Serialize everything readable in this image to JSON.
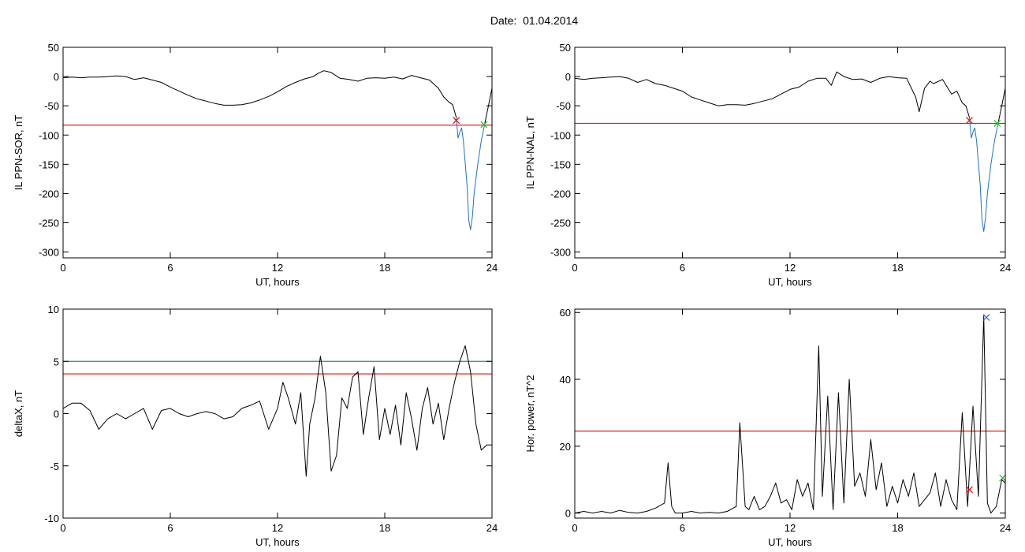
{
  "figure_title": "Date:  01.04.2014",
  "colors": {
    "axis": "#000000",
    "threshold_red": "#e0201a",
    "threshold_teal": "#1f8f8f",
    "event": "#1f6fd0",
    "marker_red": "#d01010",
    "marker_green": "#20c020",
    "marker_blue": "#3070d0"
  },
  "chart_data": [
    {
      "type": "line",
      "xlabel": "UT, hours",
      "ylabel": "IL PPN-SOR, nT",
      "xlim": [
        0,
        24
      ],
      "ylim": [
        -310,
        50
      ],
      "xticks": [
        "0",
        "6",
        "12",
        "18",
        "24"
      ],
      "yticks": [
        "50",
        "0",
        "-50",
        "-100",
        "-150",
        "-200",
        "-250",
        "-300"
      ],
      "xtick_values": [
        0,
        6,
        12,
        18,
        24
      ],
      "ytick_values": [
        50,
        0,
        -50,
        -100,
        -150,
        -200,
        -250,
        -300
      ],
      "series": [
        {
          "color": "#000000",
          "x": [
            0,
            0.5,
            1,
            1.5,
            2,
            2.5,
            3,
            3.5,
            4,
            4.5,
            5,
            5.5,
            6,
            6.5,
            7,
            7.5,
            8,
            8.5,
            9,
            9.5,
            10,
            10.5,
            11,
            11.5,
            12,
            12.5,
            13,
            13.5,
            14,
            14.3,
            14.6,
            15,
            15.5,
            16,
            16.5,
            17,
            17.5,
            18,
            18.5,
            19,
            19.5,
            20,
            20.5,
            21,
            21.3,
            21.6,
            21.8,
            22.0
          ],
          "y": [
            -2,
            -1,
            -2,
            -1,
            -1,
            0,
            1,
            0,
            -5,
            -2,
            -6,
            -10,
            -18,
            -25,
            -32,
            -38,
            -42,
            -46,
            -49,
            -49,
            -48,
            -45,
            -40,
            -34,
            -26,
            -17,
            -10,
            -4,
            0,
            6,
            10,
            7,
            -3,
            -5,
            -8,
            -3,
            -2,
            -3,
            -1,
            -4,
            2,
            -2,
            -6,
            -20,
            -35,
            -44,
            -48,
            -70
          ]
        },
        {
          "color": "#1f6fd0",
          "x": [
            22.0,
            22.1,
            22.2,
            22.3,
            22.4,
            22.6,
            22.7,
            22.8,
            22.9,
            23.0,
            23.2,
            23.4,
            23.6
          ],
          "y": [
            -70,
            -105,
            -95,
            -88,
            -110,
            -185,
            -245,
            -262,
            -240,
            -200,
            -150,
            -110,
            -80
          ]
        },
        {
          "color": "#000000",
          "x": [
            23.6,
            23.8,
            24.0
          ],
          "y": [
            -80,
            -50,
            -20
          ]
        }
      ],
      "thresholds": [
        {
          "y": -83,
          "color": "#e0201a"
        }
      ],
      "markers": [
        {
          "x": 22.0,
          "y": -75,
          "color": "#d01010"
        },
        {
          "x": 23.55,
          "y": -82,
          "color": "#20c020"
        }
      ]
    },
    {
      "type": "line",
      "xlabel": "UT, hours",
      "ylabel": "IL PPN-NAL, nT",
      "xlim": [
        0,
        24
      ],
      "ylim": [
        -310,
        50
      ],
      "xticks": [
        "0",
        "6",
        "12",
        "18",
        "24"
      ],
      "yticks": [
        "50",
        "0",
        "-50",
        "-100",
        "-150",
        "-200",
        "-250",
        "-300"
      ],
      "xtick_values": [
        0,
        6,
        12,
        18,
        24
      ],
      "ytick_values": [
        50,
        0,
        -50,
        -100,
        -150,
        -200,
        -250,
        -300
      ],
      "series": [
        {
          "color": "#000000",
          "x": [
            0,
            0.5,
            1,
            1.5,
            2,
            2.5,
            3,
            3.5,
            4,
            4.5,
            5,
            5.5,
            6,
            6.5,
            7,
            7.5,
            8,
            8.5,
            9,
            9.5,
            10,
            10.5,
            11,
            11.5,
            12,
            12.5,
            13,
            13.5,
            14,
            14.3,
            14.6,
            15,
            15.5,
            16,
            16.5,
            17,
            17.5,
            18,
            18.5,
            19,
            19.2,
            19.5,
            19.8,
            20,
            20.5,
            21,
            21.3,
            21.6,
            21.8,
            22.0
          ],
          "y": [
            -3,
            -5,
            -3,
            -2,
            -1,
            0,
            -3,
            -10,
            -5,
            -12,
            -15,
            -20,
            -25,
            -35,
            -40,
            -45,
            -50,
            -48,
            -48,
            -49,
            -46,
            -42,
            -38,
            -30,
            -22,
            -18,
            -8,
            -3,
            -3,
            -15,
            8,
            0,
            -5,
            -4,
            -10,
            -3,
            0,
            -2,
            -3,
            -35,
            -60,
            -20,
            -8,
            -12,
            -5,
            -30,
            -25,
            -45,
            -50,
            -70
          ]
        },
        {
          "color": "#1f6fd0",
          "x": [
            22.0,
            22.1,
            22.2,
            22.3,
            22.4,
            22.6,
            22.7,
            22.8,
            22.9,
            23.0,
            23.2,
            23.4,
            23.6
          ],
          "y": [
            -70,
            -105,
            -95,
            -88,
            -110,
            -185,
            -245,
            -265,
            -240,
            -200,
            -150,
            -110,
            -80
          ]
        },
        {
          "color": "#000000",
          "x": [
            23.6,
            23.8,
            24.0
          ],
          "y": [
            -80,
            -50,
            -20
          ]
        }
      ],
      "thresholds": [
        {
          "y": -80,
          "color": "#e0201a"
        }
      ],
      "markers": [
        {
          "x": 22.0,
          "y": -75,
          "color": "#d01010"
        },
        {
          "x": 23.55,
          "y": -80,
          "color": "#20c020"
        }
      ]
    },
    {
      "type": "line",
      "xlabel": "UT, hours",
      "ylabel": "deltaX, nT",
      "xlim": [
        0,
        24
      ],
      "ylim": [
        -10,
        10
      ],
      "xticks": [
        "0",
        "6",
        "12",
        "18",
        "24"
      ],
      "yticks": [
        "10",
        "5",
        "0",
        "-5",
        "-10"
      ],
      "xtick_values": [
        0,
        6,
        12,
        18,
        24
      ],
      "ytick_values": [
        10,
        5,
        0,
        -5,
        -10
      ],
      "series": [
        {
          "color": "#000000",
          "x": [
            0,
            0.5,
            1,
            1.5,
            2,
            2.5,
            3,
            3.5,
            4,
            4.5,
            5,
            5.5,
            6,
            6.5,
            7,
            7.5,
            8,
            8.5,
            9,
            9.5,
            10,
            10.5,
            11,
            11.5,
            12,
            12.3,
            12.6,
            13,
            13.3,
            13.6,
            13.8,
            14.1,
            14.4,
            14.7,
            15.0,
            15.3,
            15.6,
            15.9,
            16.2,
            16.5,
            16.8,
            17.1,
            17.4,
            17.7,
            18.0,
            18.3,
            18.6,
            18.9,
            19.2,
            19.5,
            19.8,
            20.1,
            20.4,
            20.7,
            21.0,
            21.3,
            21.6,
            21.9,
            22.2,
            22.5,
            22.8,
            23.1,
            23.4,
            23.7,
            24.0
          ],
          "y": [
            0.5,
            1.0,
            1.0,
            0.3,
            -1.5,
            -0.5,
            0.0,
            -0.5,
            0.0,
            0.5,
            -1.5,
            0.3,
            0.5,
            0.0,
            -0.3,
            0.0,
            0.2,
            0.0,
            -0.5,
            -0.3,
            0.5,
            0.8,
            1.2,
            -1.5,
            0.5,
            3.0,
            1.5,
            -1.0,
            2.0,
            -6.0,
            -1.0,
            1.5,
            5.5,
            2.0,
            -5.5,
            -4.0,
            1.5,
            0.5,
            3.5,
            4.0,
            -2.0,
            1.5,
            4.5,
            -2.5,
            0.5,
            -2.0,
            0.8,
            -3.0,
            2.0,
            -0.5,
            -3.5,
            0.5,
            2.5,
            -1.0,
            1.0,
            -2.5,
            0.5,
            3.0,
            5.0,
            6.5,
            4.0,
            -1.0,
            -3.5,
            -3.0,
            -3.0
          ]
        }
      ],
      "thresholds": [
        {
          "y": 5.0,
          "color": "#1f8f8f"
        },
        {
          "y": 3.8,
          "color": "#e0201a"
        }
      ],
      "markers": []
    },
    {
      "type": "line",
      "xlabel": "UT, hours",
      "ylabel": "Hor. power, nT^2",
      "xlim": [
        0,
        24
      ],
      "ylim": [
        -1.5,
        61
      ],
      "xticks": [
        "0",
        "6",
        "12",
        "18",
        "24"
      ],
      "yticks": [
        "60",
        "40",
        "20",
        "0"
      ],
      "xtick_values": [
        0,
        6,
        12,
        18,
        24
      ],
      "ytick_values": [
        60,
        40,
        20,
        0
      ],
      "series": [
        {
          "color": "#000000",
          "x": [
            0,
            0.5,
            1,
            1.5,
            2,
            2.5,
            3,
            3.5,
            4,
            4.5,
            5,
            5.2,
            5.4,
            5.6,
            6,
            6.5,
            7,
            7.5,
            8,
            8.5,
            9,
            9.2,
            9.5,
            9.7,
            10,
            10.3,
            10.6,
            10.9,
            11.2,
            11.5,
            11.8,
            12.1,
            12.4,
            12.7,
            13.0,
            13.3,
            13.6,
            13.8,
            14.1,
            14.4,
            14.7,
            15.0,
            15.3,
            15.6,
            15.9,
            16.2,
            16.5,
            16.8,
            17.1,
            17.4,
            17.7,
            18.0,
            18.3,
            18.6,
            18.9,
            19.2,
            19.5,
            19.8,
            20.1,
            20.4,
            20.7,
            21.0,
            21.3,
            21.6,
            21.9,
            22.2,
            22.5,
            22.8,
            23.0,
            23.2,
            23.5,
            23.8,
            24.0
          ],
          "y": [
            0,
            0.5,
            0,
            0.5,
            0,
            0.8,
            0.2,
            0,
            0.5,
            1.5,
            3,
            15,
            2,
            0,
            0,
            0.5,
            0,
            0.2,
            0,
            0.5,
            2,
            27,
            2,
            1,
            5,
            1,
            2,
            5,
            9,
            3,
            4,
            1,
            10,
            5,
            9,
            1,
            50,
            5,
            35,
            1,
            36,
            3,
            40,
            8,
            12,
            5,
            22,
            7,
            15,
            2,
            8,
            3,
            10,
            5,
            12,
            2,
            4,
            6,
            12,
            2,
            10,
            4,
            1,
            30,
            2,
            32,
            5,
            59,
            3,
            0,
            2,
            10,
            9
          ]
        }
      ],
      "thresholds": [
        {
          "y": 24.5,
          "color": "#e0201a"
        }
      ],
      "markers": [
        {
          "x": 22.0,
          "y": 7,
          "color": "#d01010"
        },
        {
          "x": 22.95,
          "y": 58.5,
          "color": "#3070d0"
        },
        {
          "x": 23.85,
          "y": 10.5,
          "color": "#20c020"
        }
      ]
    }
  ]
}
